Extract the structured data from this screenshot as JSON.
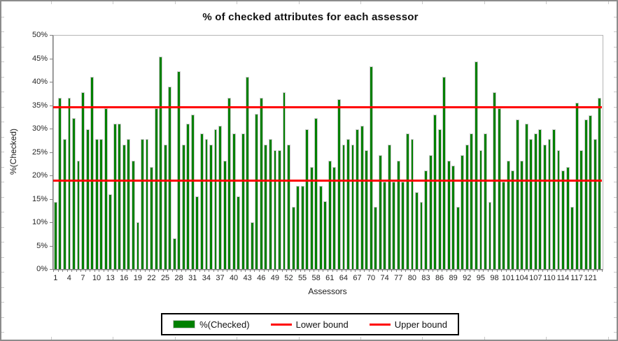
{
  "title": "% of checked attributes for each assessor",
  "y_axis": {
    "title": "%(Checked)",
    "tick_labels": [
      "0%",
      "5%",
      "10%",
      "15%",
      "20%",
      "25%",
      "30%",
      "35%",
      "40%",
      "45%",
      "50%"
    ],
    "min": 0,
    "max": 50,
    "step": 5
  },
  "x_axis": {
    "title": "Assessors",
    "tick_labels": [
      "1",
      "4",
      "7",
      "10",
      "13",
      "16",
      "19",
      "22",
      "25",
      "28",
      "31",
      "34",
      "37",
      "40",
      "43",
      "46",
      "49",
      "52",
      "55",
      "58",
      "61",
      "64",
      "67",
      "70",
      "74",
      "77",
      "80",
      "83",
      "86",
      "89",
      "92",
      "95",
      "98",
      "101",
      "104",
      "107",
      "110",
      "114",
      "117",
      "121"
    ],
    "label_every_n_bars": 3
  },
  "legend": {
    "series_label": "%(Checked)",
    "lower_label": "Lower bound",
    "upper_label": "Upper bound"
  },
  "chart_data": {
    "type": "bar",
    "title": "% of checked attributes for each assessor",
    "xlabel": "Assessors",
    "ylabel": "%(Checked)",
    "ylim": [
      0,
      50
    ],
    "grid": false,
    "legend_position": "bottom",
    "n_bars": 120,
    "x_tick_labels": [
      "1",
      "4",
      "7",
      "10",
      "13",
      "16",
      "19",
      "22",
      "25",
      "28",
      "31",
      "34",
      "37",
      "40",
      "43",
      "46",
      "49",
      "52",
      "55",
      "58",
      "61",
      "64",
      "67",
      "70",
      "74",
      "77",
      "80",
      "83",
      "86",
      "89",
      "92",
      "95",
      "98",
      "101",
      "104",
      "107",
      "110",
      "114",
      "117",
      "121"
    ],
    "series": [
      {
        "name": "%(Checked)",
        "values": [
          14.3,
          36.6,
          27.7,
          36.6,
          32.2,
          23.2,
          37.8,
          29.9,
          41.1,
          27.7,
          27.7,
          34.4,
          15.9,
          31.0,
          31.0,
          26.6,
          27.7,
          23.2,
          10.0,
          27.7,
          27.7,
          21.8,
          34.4,
          45.4,
          26.6,
          38.9,
          6.6,
          42.2,
          26.6,
          31.0,
          33.0,
          15.5,
          28.9,
          27.7,
          26.6,
          29.9,
          30.6,
          23.2,
          36.6,
          28.9,
          15.5,
          28.9,
          41.1,
          10.0,
          33.2,
          36.6,
          26.6,
          27.7,
          25.4,
          25.4,
          37.8,
          26.6,
          13.3,
          17.8,
          17.8,
          29.9,
          21.8,
          32.2,
          17.8,
          14.5,
          23.2,
          21.8,
          36.3,
          26.6,
          27.7,
          26.6,
          29.9,
          30.6,
          25.4,
          43.3,
          13.3,
          24.4,
          18.6,
          26.6,
          18.6,
          23.2,
          18.6,
          28.9,
          27.7,
          16.4,
          14.3,
          21.1,
          24.4,
          33.0,
          29.9,
          41.1,
          23.2,
          22.1,
          13.3,
          24.4,
          26.6,
          28.9,
          44.3,
          25.4,
          28.9,
          14.3,
          37.8,
          34.4,
          18.6,
          23.2,
          21.1,
          32.0,
          23.2,
          31.0,
          27.7,
          28.9,
          29.9,
          26.6,
          27.7,
          29.9,
          25.4,
          21.1,
          21.8,
          13.3,
          35.5,
          25.4,
          32.0,
          32.9,
          27.7,
          36.6
        ]
      }
    ],
    "lower_bound": 19.0,
    "upper_bound": 34.7
  },
  "colors": {
    "bar_fill": "#008000",
    "bar_border": "#c9c9c9",
    "bound_line": "#ff0000",
    "axis_line": "#808080",
    "plot_border": "#b5b5b5",
    "frame_border": "#8c8c8c",
    "grid_stub": "#c8c8c8",
    "text": "#1a1a1a"
  }
}
